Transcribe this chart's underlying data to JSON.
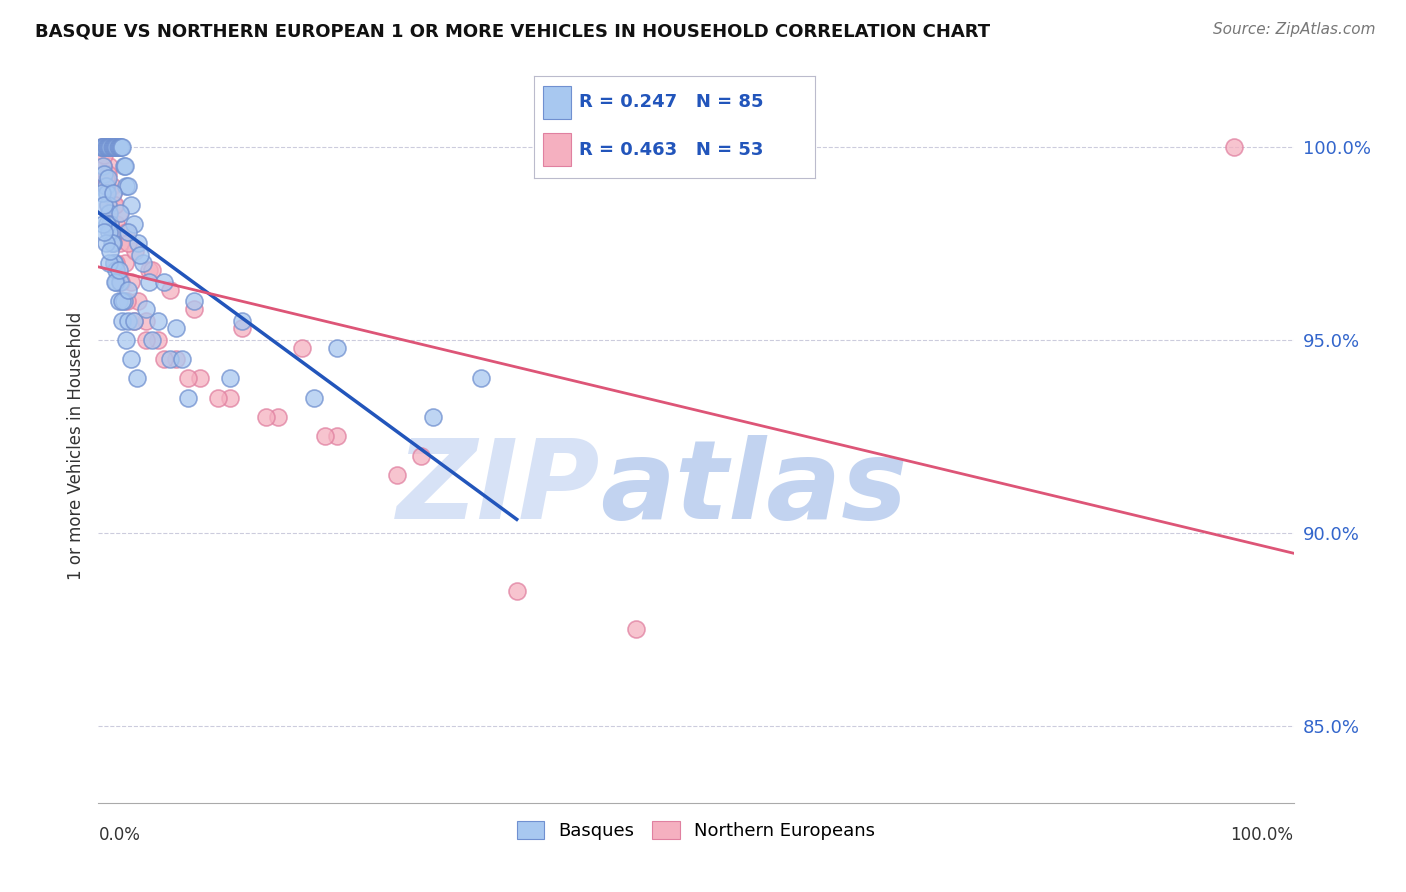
{
  "title": "BASQUE VS NORTHERN EUROPEAN 1 OR MORE VEHICLES IN HOUSEHOLD CORRELATION CHART",
  "source": "Source: ZipAtlas.com",
  "ylabel": "1 or more Vehicles in Household",
  "ylim": [
    83.0,
    101.5
  ],
  "xlim": [
    0.0,
    100.0
  ],
  "blue_R": 0.247,
  "blue_N": 85,
  "pink_R": 0.463,
  "pink_N": 53,
  "blue_color": "#a8c8f0",
  "pink_color": "#f5b0c0",
  "blue_edge_color": "#7090d0",
  "pink_edge_color": "#e080a0",
  "blue_line_color": "#2255bb",
  "pink_line_color": "#dd5577",
  "blue_label": "Basques",
  "pink_label": "Northern Europeans",
  "legend_text_color": "#2255bb",
  "watermark_zip": "ZIP",
  "watermark_atlas": "atlas",
  "watermark_color_zip": "#d0ddf5",
  "watermark_color_atlas": "#b8ccee",
  "background_color": "#ffffff",
  "grid_color": "#ccccdd",
  "blue_x": [
    0.2,
    0.3,
    0.4,
    0.5,
    0.6,
    0.7,
    0.8,
    0.9,
    1.0,
    1.1,
    1.2,
    1.3,
    1.4,
    1.5,
    1.6,
    1.7,
    1.8,
    1.9,
    2.0,
    2.1,
    2.2,
    2.3,
    2.5,
    2.7,
    3.0,
    3.3,
    3.7,
    4.2,
    5.0,
    6.0,
    7.5,
    0.4,
    0.5,
    0.6,
    0.7,
    0.8,
    0.9,
    1.0,
    1.1,
    1.2,
    1.3,
    1.5,
    1.7,
    2.0,
    2.3,
    2.7,
    3.2,
    0.3,
    0.5,
    0.7,
    0.9,
    1.1,
    1.3,
    1.5,
    1.8,
    2.1,
    2.5,
    0.8,
    1.2,
    1.8,
    2.5,
    3.5,
    5.5,
    8.0,
    12.0,
    20.0,
    32.0,
    0.4,
    0.6,
    0.9,
    1.4,
    2.0,
    3.0,
    4.5,
    7.0,
    11.0,
    18.0,
    28.0,
    0.5,
    1.0,
    1.7,
    2.5,
    4.0,
    6.5
  ],
  "blue_y": [
    100.0,
    100.0,
    100.0,
    100.0,
    100.0,
    100.0,
    100.0,
    100.0,
    100.0,
    100.0,
    100.0,
    100.0,
    100.0,
    100.0,
    100.0,
    100.0,
    100.0,
    100.0,
    100.0,
    99.5,
    99.5,
    99.0,
    99.0,
    98.5,
    98.0,
    97.5,
    97.0,
    96.5,
    95.5,
    94.5,
    93.5,
    99.5,
    99.3,
    99.0,
    98.8,
    98.5,
    98.3,
    98.0,
    97.8,
    97.5,
    97.0,
    96.5,
    96.0,
    95.5,
    95.0,
    94.5,
    94.0,
    98.8,
    98.5,
    98.0,
    97.8,
    97.5,
    97.0,
    96.8,
    96.5,
    96.0,
    95.5,
    99.2,
    98.8,
    98.3,
    97.8,
    97.2,
    96.5,
    96.0,
    95.5,
    94.8,
    94.0,
    98.0,
    97.5,
    97.0,
    96.5,
    96.0,
    95.5,
    95.0,
    94.5,
    94.0,
    93.5,
    93.0,
    97.8,
    97.3,
    96.8,
    96.3,
    95.8,
    95.3
  ],
  "pink_x": [
    0.3,
    0.5,
    0.7,
    0.9,
    1.1,
    1.3,
    1.5,
    1.8,
    2.2,
    2.7,
    3.3,
    4.0,
    5.0,
    6.5,
    8.5,
    11.0,
    15.0,
    20.0,
    27.0,
    0.4,
    0.6,
    0.8,
    1.0,
    1.2,
    1.5,
    1.9,
    2.4,
    3.0,
    4.0,
    5.5,
    7.5,
    10.0,
    14.0,
    19.0,
    0.5,
    0.8,
    1.2,
    1.7,
    2.3,
    3.1,
    4.2,
    6.0,
    8.0,
    12.0,
    17.0,
    95.0,
    25.0,
    35.0,
    45.0,
    0.6,
    1.4,
    2.5,
    4.5
  ],
  "pink_y": [
    100.0,
    100.0,
    100.0,
    99.5,
    99.0,
    98.5,
    98.0,
    97.5,
    97.0,
    96.5,
    96.0,
    95.5,
    95.0,
    94.5,
    94.0,
    93.5,
    93.0,
    92.5,
    92.0,
    99.5,
    99.0,
    98.5,
    98.0,
    97.5,
    97.0,
    96.5,
    96.0,
    95.5,
    95.0,
    94.5,
    94.0,
    93.5,
    93.0,
    92.5,
    99.8,
    99.3,
    98.8,
    98.3,
    97.8,
    97.3,
    96.8,
    96.3,
    95.8,
    95.3,
    94.8,
    100.0,
    91.5,
    88.5,
    87.5,
    99.2,
    98.5,
    97.5,
    96.8
  ]
}
